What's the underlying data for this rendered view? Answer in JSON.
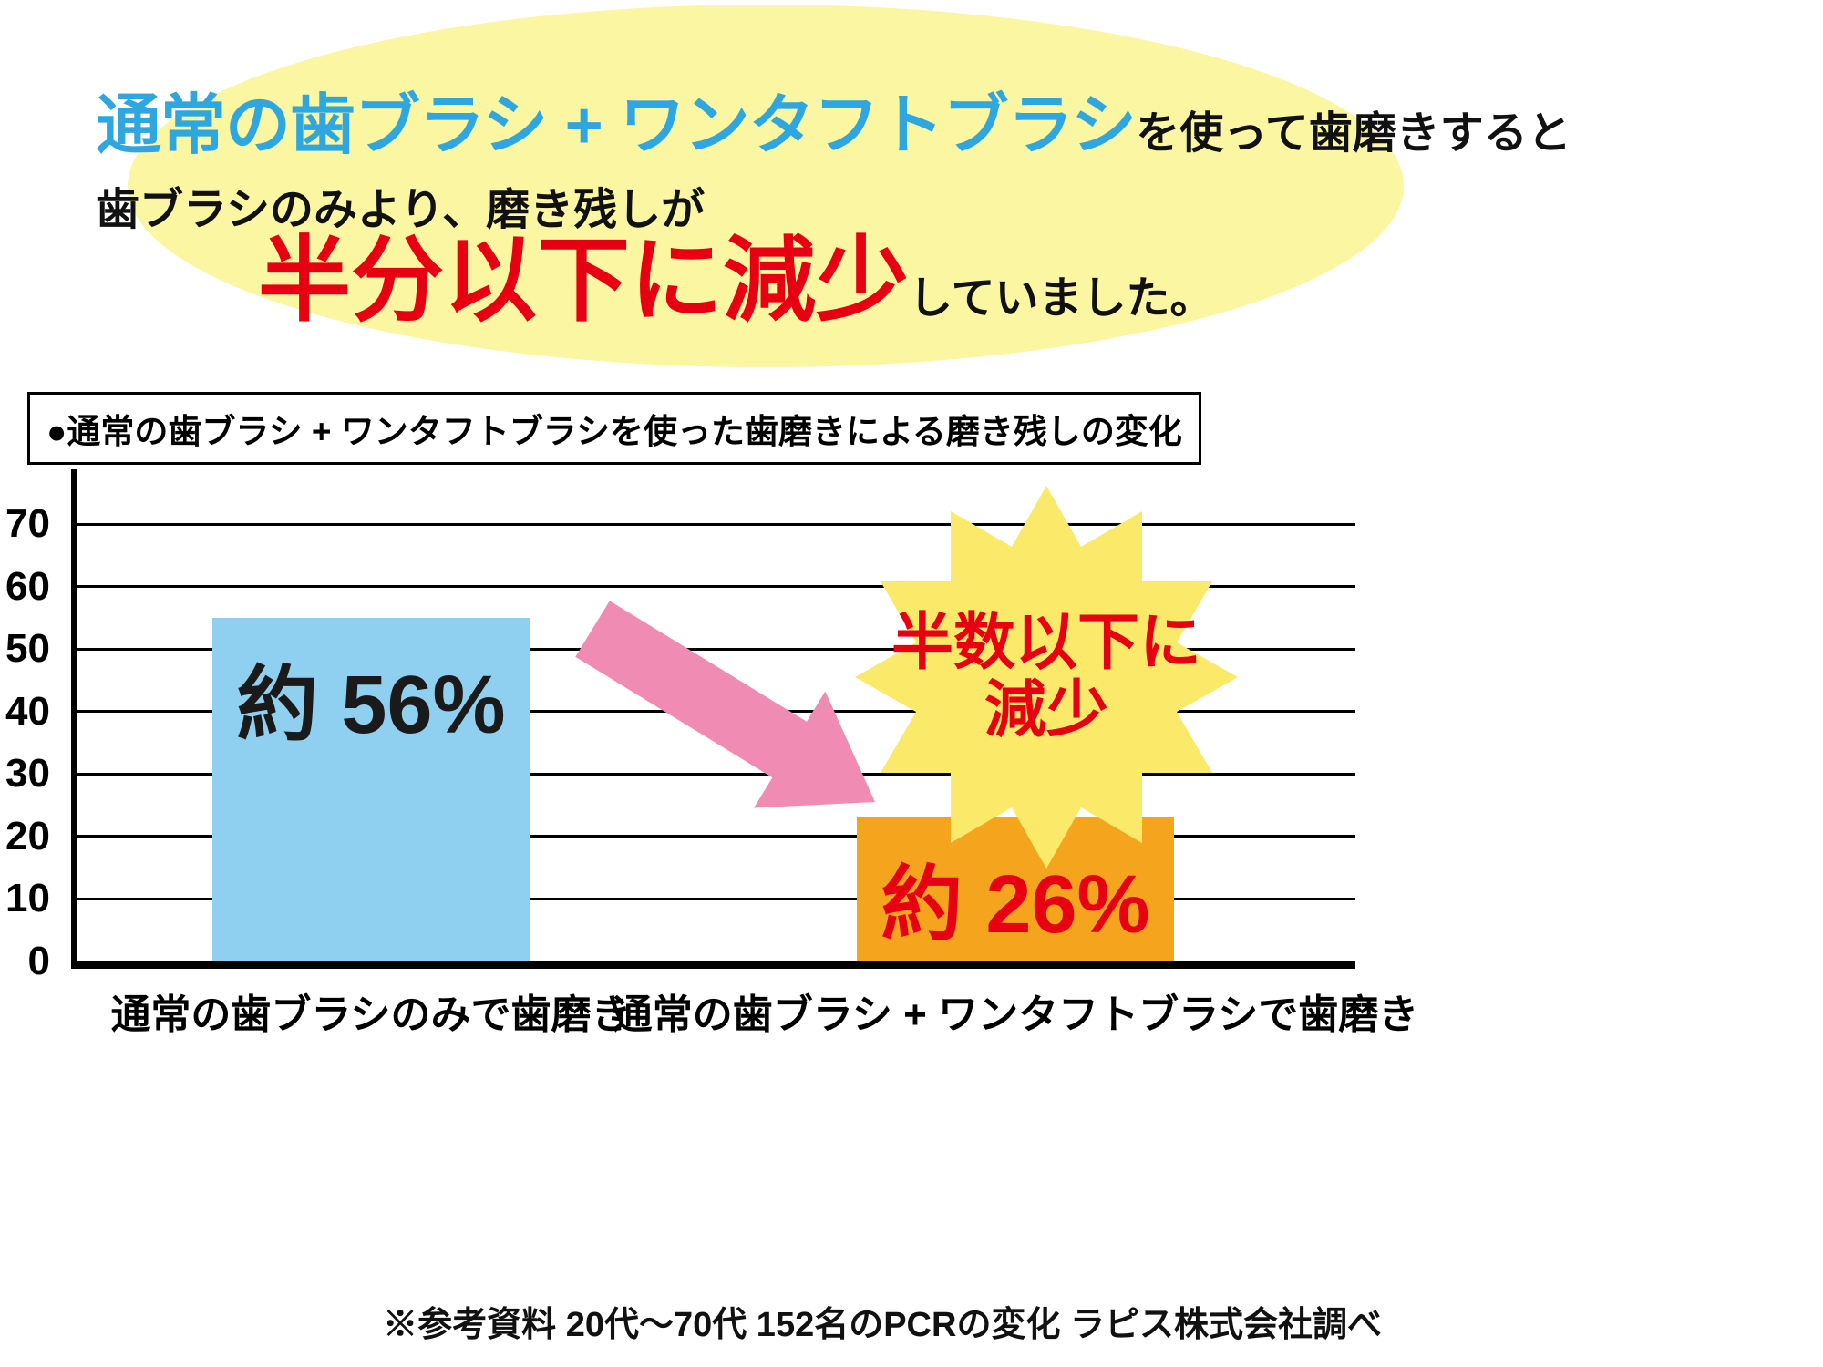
{
  "headline": {
    "line1_blue": "通常の歯ブラシ + ワンタフトブラシ",
    "line1_black": "を使って歯磨きすると",
    "line2": "歯ブラシのみより、磨き残しが",
    "line3_red": "半分以下に減少",
    "line3_black": "していました。"
  },
  "chart_data": {
    "type": "bar",
    "title": "●通常の歯ブラシ + ワンタフトブラシを使った歯磨きによる磨き残しの変化",
    "categories": [
      "通常の歯ブラシのみで歯磨き",
      "通常の歯ブラシ + ワンタフトブラシで歯磨き"
    ],
    "values": [
      56,
      26
    ],
    "value_labels": [
      "約 56%",
      "約 26%"
    ],
    "drawn_bar_tops": [
      55,
      23
    ],
    "bar_colors": [
      "#8FD0F0",
      "#F5A51D"
    ],
    "value_label_colors": [
      "#1A1A1A",
      "#E60012"
    ],
    "xlabel": "",
    "ylabel": "",
    "ylim": [
      0,
      78
    ],
    "yticks": [
      0,
      10,
      20,
      30,
      40,
      50,
      60,
      70
    ],
    "grid": true,
    "legend": false,
    "annotation": "半数以下に減少"
  },
  "annotation": {
    "line1": "半数以下に",
    "line2": "減少"
  },
  "footnote": "※参考資料 20代～70代 152名のPCRの変化 ラピス株式会社調べ",
  "colors": {
    "headline_blue": "#2EA7E0",
    "emphasis_red": "#E60012",
    "ellipse_yellow": "#FAF6A2",
    "burst_yellow": "#FBE96A",
    "arrow_pink": "#F08CB4",
    "bar_blue": "#8FD0F0",
    "bar_orange": "#F5A51D"
  }
}
